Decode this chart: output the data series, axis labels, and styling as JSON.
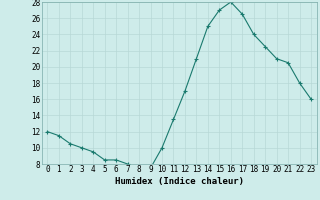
{
  "x": [
    0,
    1,
    2,
    3,
    4,
    5,
    6,
    7,
    8,
    9,
    10,
    11,
    12,
    13,
    14,
    15,
    16,
    17,
    18,
    19,
    20,
    21,
    22,
    23
  ],
  "y": [
    12,
    11.5,
    10.5,
    10,
    9.5,
    8.5,
    8.5,
    8,
    7.5,
    7.5,
    10,
    13.5,
    17,
    21,
    25,
    27,
    28,
    26.5,
    24,
    22.5,
    21,
    20.5,
    18,
    16
  ],
  "line_color": "#1a7a6e",
  "marker": "+",
  "marker_color": "#1a7a6e",
  "bg_color": "#ceecea",
  "grid_color": "#b8d8d6",
  "xlabel": "Humidex (Indice chaleur)",
  "ylim": [
    8,
    28
  ],
  "xlim": [
    -0.5,
    23.5
  ],
  "yticks": [
    8,
    10,
    12,
    14,
    16,
    18,
    20,
    22,
    24,
    26,
    28
  ],
  "xticks": [
    0,
    1,
    2,
    3,
    4,
    5,
    6,
    7,
    8,
    9,
    10,
    11,
    12,
    13,
    14,
    15,
    16,
    17,
    18,
    19,
    20,
    21,
    22,
    23
  ],
  "xtick_labels": [
    "0",
    "1",
    "2",
    "3",
    "4",
    "5",
    "6",
    "7",
    "8",
    "9",
    "10",
    "11",
    "12",
    "13",
    "14",
    "15",
    "16",
    "17",
    "18",
    "19",
    "20",
    "21",
    "22",
    "23"
  ],
  "label_fontsize": 6.5,
  "tick_fontsize": 5.5
}
